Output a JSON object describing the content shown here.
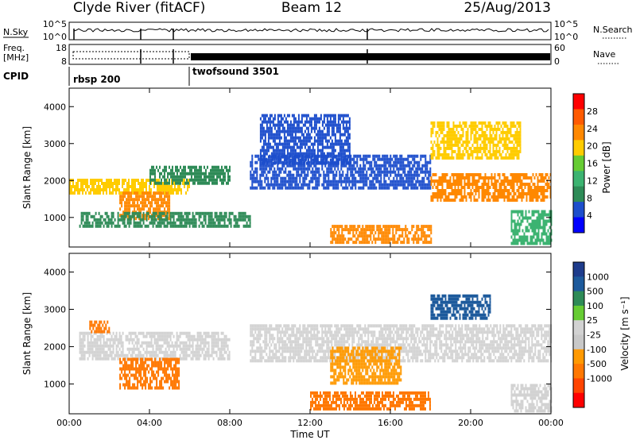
{
  "header": {
    "station": "Clyde River (fitACF)",
    "beam": "Beam 12",
    "date": "25/Aug/2013"
  },
  "status_panels": {
    "nsky": {
      "label": "N.Sky",
      "ticks": [
        "10^5",
        "10^0"
      ],
      "right_ticks": [
        "10^5",
        "10^0"
      ],
      "right_label": "N.Search"
    },
    "freq": {
      "label_line1": "Freq.",
      "label_line2": "[MHz]",
      "ticks": [
        "18",
        "8"
      ],
      "right_ticks": [
        "60",
        "0"
      ],
      "right_label": "Nave"
    },
    "cpid": {
      "label": "CPID",
      "segments": [
        {
          "name": "rbsp 200",
          "start_hour": 0,
          "end_hour": 6
        },
        {
          "name": "twofsound 3501",
          "start_hour": 6,
          "end_hour": 24
        }
      ]
    }
  },
  "colors": {
    "power_scale": [
      "#0000ff",
      "#1d4ecc",
      "#2e8b57",
      "#3cb371",
      "#66cc33",
      "#ffcc00",
      "#ff8800",
      "#ff5a00",
      "#ff0000"
    ],
    "velocity_scale": [
      "#ff0000",
      "#ff4400",
      "#ff7700",
      "#ff9900",
      "#c8c8c8",
      "#d2d2d2",
      "#66cc33",
      "#2e8b57",
      "#1d5a9c",
      "#1e3c8c"
    ]
  },
  "chart_data": [
    {
      "type": "heatmap",
      "panel": "power",
      "title": "",
      "xlabel": "",
      "ylabel": "Slant Range [km]",
      "xlim": [
        0,
        24
      ],
      "ylim": [
        200,
        4500
      ],
      "yticks": [
        "1000",
        "2000",
        "3000",
        "4000"
      ],
      "colorbar": {
        "label": "Power [dB]",
        "ticks": [
          "4",
          "8",
          "12",
          "16",
          "20",
          "24",
          "28"
        ],
        "range": [
          0,
          32
        ]
      },
      "bands": [
        {
          "x": [
            0.0,
            6.0
          ],
          "y": [
            1650,
            2050
          ],
          "value": 18
        },
        {
          "x": [
            2.5,
            5.0
          ],
          "y": [
            1000,
            1700
          ],
          "value": 24
        },
        {
          "x": [
            0.5,
            9.0
          ],
          "y": [
            750,
            1150
          ],
          "value": 8
        },
        {
          "x": [
            4.0,
            8.0
          ],
          "y": [
            1900,
            2400
          ],
          "value": 10
        },
        {
          "x": [
            9.0,
            18.0
          ],
          "y": [
            1800,
            2700
          ],
          "value": 6
        },
        {
          "x": [
            13.0,
            18.0
          ],
          "y": [
            300,
            800
          ],
          "value": 22
        },
        {
          "x": [
            18.0,
            24.0
          ],
          "y": [
            1500,
            2200
          ],
          "value": 22
        },
        {
          "x": [
            18.0,
            22.5
          ],
          "y": [
            2600,
            3600
          ],
          "value": 18
        },
        {
          "x": [
            9.5,
            14.0
          ],
          "y": [
            2500,
            3800
          ],
          "value": 6
        },
        {
          "x": [
            22.0,
            24.0
          ],
          "y": [
            300,
            1200
          ],
          "value": 12
        }
      ]
    },
    {
      "type": "heatmap",
      "panel": "velocity",
      "title": "",
      "xlabel": "Time UT",
      "ylabel": "Slant Range [km]",
      "xlim": [
        0,
        24
      ],
      "ylim": [
        200,
        4500
      ],
      "xticks": [
        "00:00",
        "04:00",
        "08:00",
        "12:00",
        "16:00",
        "20:00",
        "00:00"
      ],
      "yticks": [
        "1000",
        "2000",
        "3000",
        "4000"
      ],
      "colorbar": {
        "label": "Velocity [m s⁻¹]",
        "ticks": [
          "1000",
          "500",
          "100",
          "25",
          "-25",
          "-100",
          "-500",
          "-1000"
        ]
      },
      "bands": [
        {
          "x": [
            0.5,
            8.0
          ],
          "y": [
            1700,
            2400
          ],
          "value": 0
        },
        {
          "x": [
            2.5,
            5.5
          ],
          "y": [
            900,
            1700
          ],
          "value": -150
        },
        {
          "x": [
            1.0,
            2.0
          ],
          "y": [
            2400,
            2700
          ],
          "value": -150
        },
        {
          "x": [
            9.0,
            24.0
          ],
          "y": [
            1600,
            2600
          ],
          "value": 0
        },
        {
          "x": [
            12.0,
            18.0
          ],
          "y": [
            300,
            800
          ],
          "value": -150
        },
        {
          "x": [
            18.0,
            21.0
          ],
          "y": [
            2800,
            3400
          ],
          "value": 600
        },
        {
          "x": [
            13.0,
            16.5
          ],
          "y": [
            1000,
            2000
          ],
          "value": -100
        },
        {
          "x": [
            22.0,
            24.0
          ],
          "y": [
            300,
            1000
          ],
          "value": 0
        }
      ]
    }
  ]
}
